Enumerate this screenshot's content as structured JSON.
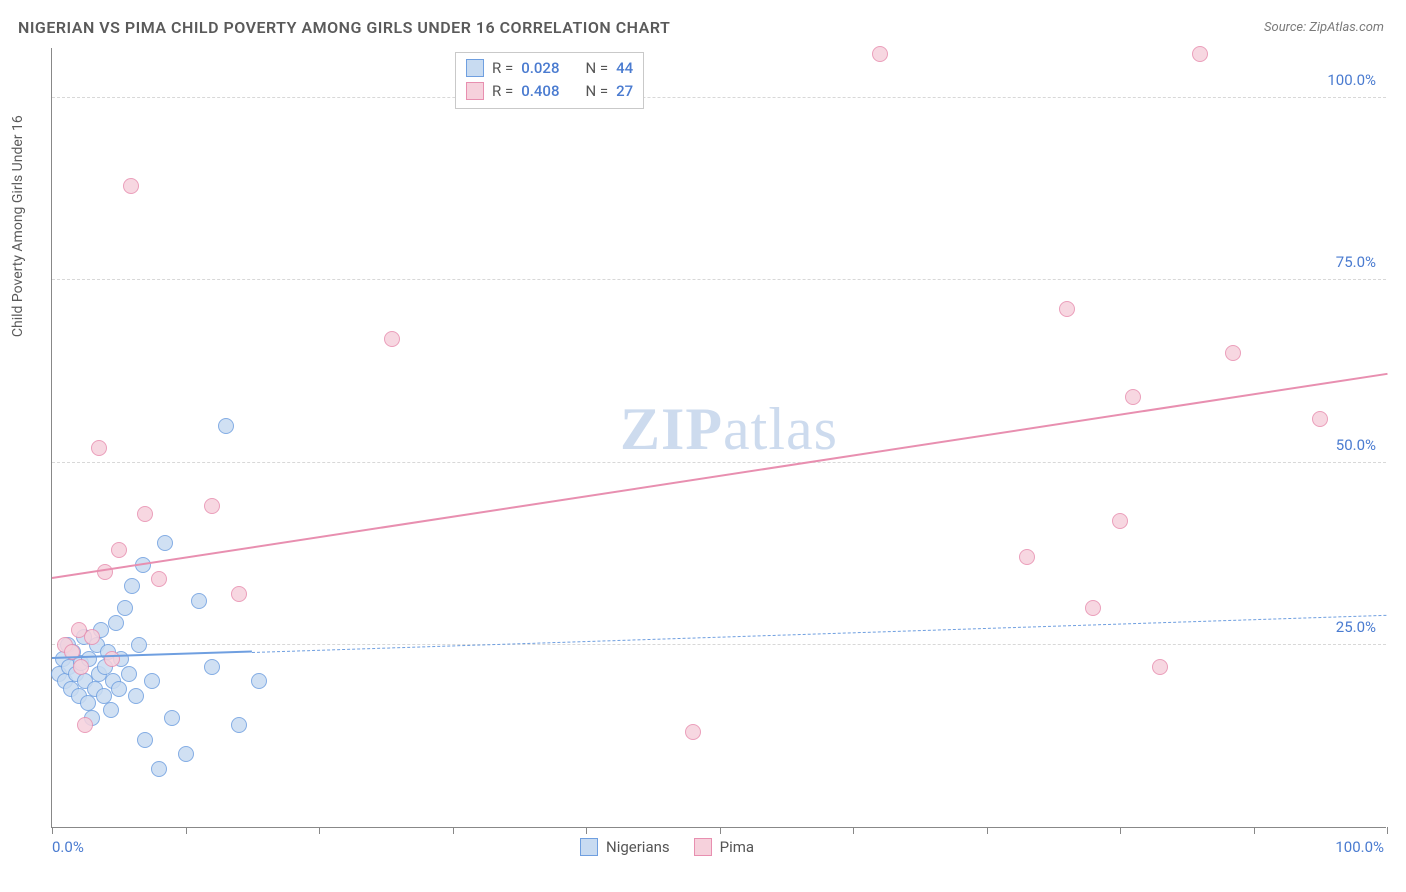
{
  "title": "NIGERIAN VS PIMA CHILD POVERTY AMONG GIRLS UNDER 16 CORRELATION CHART",
  "source": "Source: ZipAtlas.com",
  "watermark_a": "ZIP",
  "watermark_b": "atlas",
  "chart": {
    "type": "scatter",
    "y_axis_label": "Child Poverty Among Girls Under 16",
    "xlim": [
      0,
      100
    ],
    "ylim": [
      0,
      107
    ],
    "x_tick_positions": [
      0,
      10,
      20,
      30,
      40,
      50,
      60,
      70,
      80,
      90,
      100
    ],
    "x_tick_labels": {
      "min": "0.0%",
      "max": "100.0%"
    },
    "y_gridlines": [
      25,
      50,
      75,
      100
    ],
    "y_tick_labels": [
      "25.0%",
      "50.0%",
      "75.0%",
      "100.0%"
    ],
    "background_color": "#ffffff",
    "grid_color": "#d8d8d8",
    "axis_color": "#888888",
    "tick_label_color": "#4a7bd0",
    "marker_radius": 8,
    "marker_stroke_width": 1.2,
    "series": [
      {
        "name": "Nigerians",
        "fill": "#c8dbf1",
        "stroke": "#6f9fe0",
        "R": "0.028",
        "N": "44",
        "regression": {
          "x1": 0,
          "y1": 23,
          "x2": 100,
          "y2": 29,
          "solid_until_x": 15
        },
        "points": [
          [
            0.5,
            21
          ],
          [
            0.8,
            23
          ],
          [
            1.0,
            20
          ],
          [
            1.2,
            25
          ],
          [
            1.3,
            22
          ],
          [
            1.4,
            19
          ],
          [
            1.6,
            24
          ],
          [
            1.8,
            21
          ],
          [
            2.0,
            18
          ],
          [
            2.2,
            22.5
          ],
          [
            2.4,
            26
          ],
          [
            2.5,
            20
          ],
          [
            2.7,
            17
          ],
          [
            2.8,
            23
          ],
          [
            3.0,
            15
          ],
          [
            3.2,
            19
          ],
          [
            3.4,
            25
          ],
          [
            3.5,
            21
          ],
          [
            3.7,
            27
          ],
          [
            3.9,
            18
          ],
          [
            4.0,
            22
          ],
          [
            4.2,
            24
          ],
          [
            4.4,
            16
          ],
          [
            4.6,
            20
          ],
          [
            4.8,
            28
          ],
          [
            5.0,
            19
          ],
          [
            5.2,
            23
          ],
          [
            5.5,
            30
          ],
          [
            5.8,
            21
          ],
          [
            6.0,
            33
          ],
          [
            6.3,
            18
          ],
          [
            6.5,
            25
          ],
          [
            6.8,
            36
          ],
          [
            7.0,
            12
          ],
          [
            7.5,
            20
          ],
          [
            8.0,
            8
          ],
          [
            8.5,
            39
          ],
          [
            9.0,
            15
          ],
          [
            10.0,
            10
          ],
          [
            11.0,
            31
          ],
          [
            12.0,
            22
          ],
          [
            13.0,
            55
          ],
          [
            14.0,
            14
          ],
          [
            15.5,
            20
          ]
        ]
      },
      {
        "name": "Pima",
        "fill": "#f6d1dc",
        "stroke": "#e88fb0",
        "R": "0.408",
        "N": "27",
        "regression": {
          "x1": 0,
          "y1": 34,
          "x2": 100,
          "y2": 62,
          "solid_until_x": 100
        },
        "points": [
          [
            1.0,
            25
          ],
          [
            1.5,
            24
          ],
          [
            2.0,
            27
          ],
          [
            2.2,
            22
          ],
          [
            2.5,
            14
          ],
          [
            3.0,
            26
          ],
          [
            3.5,
            52
          ],
          [
            4.0,
            35
          ],
          [
            4.5,
            23
          ],
          [
            5.0,
            38
          ],
          [
            5.9,
            88
          ],
          [
            7.0,
            43
          ],
          [
            8.0,
            34
          ],
          [
            12.0,
            44
          ],
          [
            14.0,
            32
          ],
          [
            25.5,
            67
          ],
          [
            48.0,
            13
          ],
          [
            62.0,
            106
          ],
          [
            73.0,
            37
          ],
          [
            76.0,
            71
          ],
          [
            78.0,
            30
          ],
          [
            80.0,
            42
          ],
          [
            81.0,
            59
          ],
          [
            83.0,
            22
          ],
          [
            86.0,
            106
          ],
          [
            88.5,
            65
          ],
          [
            95.0,
            56
          ]
        ]
      }
    ]
  },
  "legend_top": [
    {
      "series_idx": 0,
      "r_label": "R =",
      "n_label": "N ="
    },
    {
      "series_idx": 1,
      "r_label": "R =",
      "n_label": "N ="
    }
  ],
  "legend_bottom": [
    {
      "series_idx": 0
    },
    {
      "series_idx": 1
    }
  ]
}
